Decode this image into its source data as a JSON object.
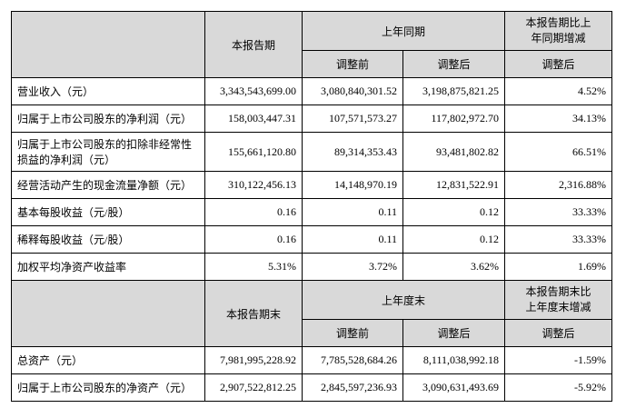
{
  "sections": [
    {
      "headers": {
        "current": "本报告期",
        "prior": "上年同期",
        "change": "本报告期比上年同期增减",
        "sub": [
          "调整前",
          "调整后",
          "调整后"
        ]
      },
      "rows": [
        [
          "营业收入（元）",
          "3,343,543,699.00",
          "3,080,840,301.52",
          "3,198,875,821.25",
          "4.52%"
        ],
        [
          "归属于上市公司股东的净利润（元）",
          "158,003,447.31",
          "107,571,573.27",
          "117,802,972.70",
          "34.13%"
        ],
        [
          "归属于上市公司股东的扣除非经常性损益的净利润（元）",
          "155,661,120.80",
          "89,314,353.43",
          "93,481,802.82",
          "66.51%"
        ],
        [
          "经营活动产生的现金流量净额（元）",
          "310,122,456.13",
          "14,148,970.19",
          "12,831,522.91",
          "2,316.88%"
        ],
        [
          "基本每股收益（元/股）",
          "0.16",
          "0.11",
          "0.12",
          "33.33%"
        ],
        [
          "稀释每股收益（元/股）",
          "0.16",
          "0.11",
          "0.12",
          "33.33%"
        ],
        [
          "加权平均净资产收益率",
          "5.31%",
          "3.72%",
          "3.62%",
          "1.69%"
        ]
      ]
    },
    {
      "headers": {
        "current": "本报告期末",
        "prior": "上年度末",
        "change": "本报告期末比上年度末增减",
        "sub": [
          "调整前",
          "调整后",
          "调整后"
        ]
      },
      "rows": [
        [
          "总资产（元）",
          "7,981,995,228.92",
          "7,785,528,684.26",
          "8,111,038,992.18",
          "-1.59%"
        ],
        [
          "归属于上市公司股东的净资产（元）",
          "2,907,522,812.25",
          "2,845,597,236.93",
          "3,090,631,493.69",
          "-5.92%"
        ]
      ]
    }
  ]
}
